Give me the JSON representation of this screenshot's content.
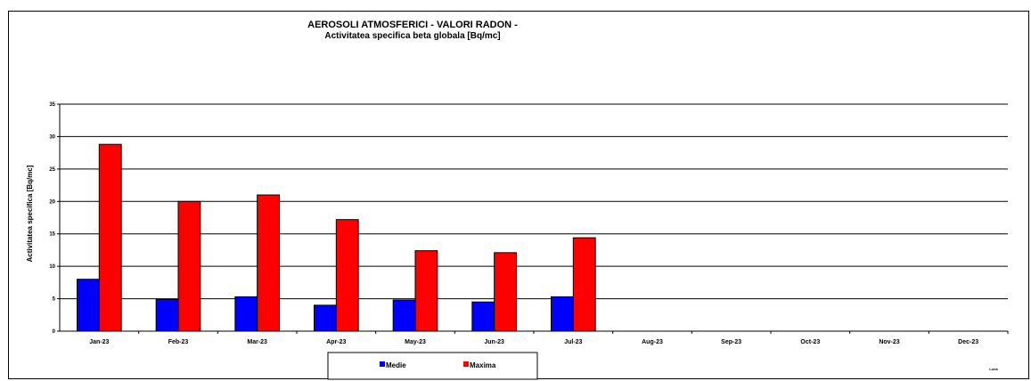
{
  "chart_data": {
    "type": "bar",
    "title": "AEROSOLI ATMOSFERICI - VALORI RADON -",
    "subtitle": "Activitatea specifica beta globala [Bq/mc]",
    "ylabel": "Activitatea specifica [Bq/mc]",
    "xlabel": "Luna",
    "categories": [
      "Jan-23",
      "Feb-23",
      "Mar-23",
      "Apr-23",
      "May-23",
      "Jun-23",
      "Jul-23",
      "Aug-23",
      "Sep-23",
      "Oct-23",
      "Nov-23",
      "Dec-23"
    ],
    "series": [
      {
        "name": "Medie",
        "color": "#0000ff",
        "values": [
          8.0,
          4.9,
          5.3,
          4.0,
          4.8,
          4.5,
          5.3,
          null,
          null,
          null,
          null,
          null
        ]
      },
      {
        "name": "Maxima",
        "color": "#ff0000",
        "values": [
          28.8,
          20.0,
          21.0,
          17.2,
          12.4,
          12.1,
          14.4,
          null,
          null,
          null,
          null,
          null
        ]
      }
    ],
    "ylim": [
      0,
      35
    ],
    "yticks": [
      0,
      5,
      10,
      15,
      20,
      25,
      30,
      35
    ],
    "grid": true,
    "legend_position": "bottom-center"
  }
}
